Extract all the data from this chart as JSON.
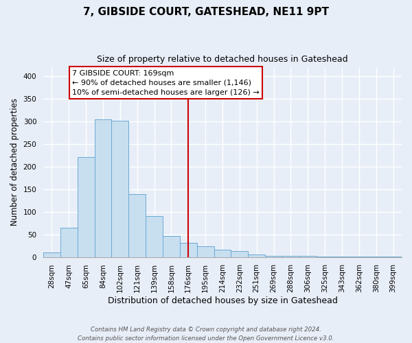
{
  "title": "7, GIBSIDE COURT, GATESHEAD, NE11 9PT",
  "subtitle": "Size of property relative to detached houses in Gateshead",
  "xlabel": "Distribution of detached houses by size in Gateshead",
  "ylabel": "Number of detached properties",
  "bar_labels": [
    "28sqm",
    "47sqm",
    "65sqm",
    "84sqm",
    "102sqm",
    "121sqm",
    "139sqm",
    "158sqm",
    "176sqm",
    "195sqm",
    "214sqm",
    "232sqm",
    "251sqm",
    "269sqm",
    "288sqm",
    "306sqm",
    "325sqm",
    "343sqm",
    "362sqm",
    "380sqm",
    "399sqm"
  ],
  "bar_values": [
    10,
    64,
    222,
    305,
    302,
    140,
    90,
    47,
    32,
    24,
    16,
    13,
    5,
    2,
    3,
    2,
    1,
    1,
    1,
    1,
    1
  ],
  "bar_color": "#c8dff0",
  "bar_edge_color": "#6aaad4",
  "vline_x_index": 8,
  "vline_color": "#cc0000",
  "ylim": [
    0,
    420
  ],
  "annotation_title": "7 GIBSIDE COURT: 169sqm",
  "annotation_line1": "← 90% of detached houses are smaller (1,146)",
  "annotation_line2": "10% of semi-detached houses are larger (126) →",
  "annotation_box_facecolor": "#ffffff",
  "annotation_box_edgecolor": "#cc0000",
  "footer_line1": "Contains HM Land Registry data © Crown copyright and database right 2024.",
  "footer_line2": "Contains public sector information licensed under the Open Government Licence v3.0.",
  "background_color": "#e8eef8",
  "plot_bg_color": "#e8eef8",
  "title_fontsize": 11,
  "subtitle_fontsize": 9,
  "ylabel_fontsize": 8.5,
  "xlabel_fontsize": 9,
  "tick_fontsize": 7.5
}
